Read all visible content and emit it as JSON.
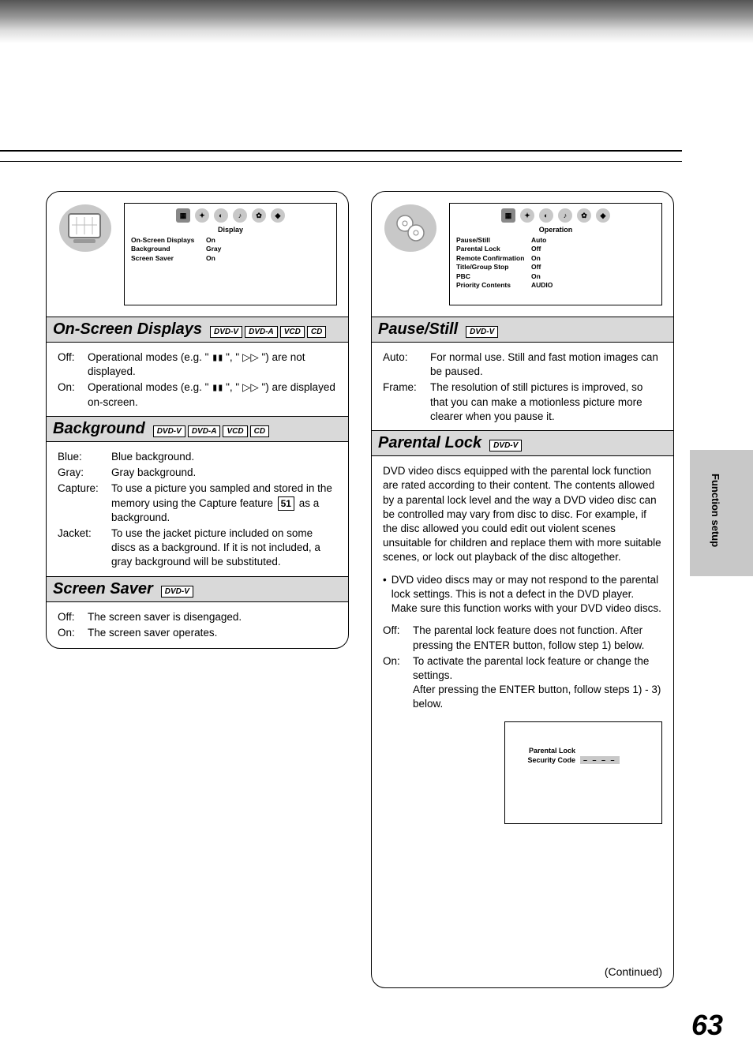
{
  "page_number": "63",
  "side_tab_label": "Function setup",
  "continued_label": "(Continued)",
  "colors": {
    "section_bg": "#d9d9d9",
    "tab_icon_bg": "#c8c8c8",
    "side_tab_bg": "#c8c8c8",
    "text": "#000000",
    "page_bg": "#ffffff"
  },
  "left": {
    "menu": {
      "title": "Display",
      "rows": [
        {
          "k": "On-Screen Displays",
          "v": "On"
        },
        {
          "k": "Background",
          "v": "Gray"
        },
        {
          "k": "Screen Saver",
          "v": "On"
        }
      ]
    },
    "sections": [
      {
        "title": "On-Screen Displays",
        "badges": [
          "DVD-V",
          "DVD-A",
          "VCD",
          "CD"
        ],
        "defs_class": "t-w1",
        "defs": [
          {
            "term": "Off:",
            "desc": "Operational modes (e.g. \" ▮▮ \", \" ▷▷ \") are not displayed."
          },
          {
            "term": "On:",
            "desc": "Operational modes (e.g. \" ▮▮ \", \" ▷▷ \") are displayed on-screen."
          }
        ]
      },
      {
        "title": "Background",
        "badges": [
          "DVD-V",
          "DVD-A",
          "VCD",
          "CD"
        ],
        "defs_class": "t-w2",
        "defs": [
          {
            "term": "Blue:",
            "desc": "Blue background."
          },
          {
            "term": "Gray:",
            "desc": "Gray background."
          },
          {
            "term": "Capture:",
            "desc": "To use a picture you sampled and stored in the memory using the Capture feature  51  as a background.",
            "has_ref": true,
            "ref": "51"
          },
          {
            "term": "Jacket:",
            "desc": "To use the jacket picture included on some discs as a background. If it is not included, a gray background will be substituted."
          }
        ]
      },
      {
        "title": "Screen Saver",
        "badges": [
          "DVD-V"
        ],
        "defs_class": "t-w1",
        "defs": [
          {
            "term": "Off:",
            "desc": "The screen saver is disengaged."
          },
          {
            "term": "On:",
            "desc": "The screen saver operates."
          }
        ]
      }
    ]
  },
  "right": {
    "menu": {
      "title": "Operation",
      "rows": [
        {
          "k": "Pause/Still",
          "v": "Auto"
        },
        {
          "k": "Parental Lock",
          "v": "Off"
        },
        {
          "k": "Remote Confirmation",
          "v": "On"
        },
        {
          "k": "Title/Group Stop",
          "v": "Off"
        },
        {
          "k": "PBC",
          "v": "On"
        },
        {
          "k": "Priority Contents",
          "v": "AUDIO"
        }
      ]
    },
    "sections": [
      {
        "title": "Pause/Still",
        "badges": [
          "DVD-V"
        ],
        "defs_class": "t-w3",
        "defs": [
          {
            "term": "Auto:",
            "desc": "For normal use. Still and fast motion images can be paused."
          },
          {
            "term": "Frame:",
            "desc": "The resolution of still pictures is improved, so that you can make a motionless picture more clearer when you pause it."
          }
        ]
      },
      {
        "title": "Parental Lock",
        "badges": [
          "DVD-V"
        ],
        "paragraph": "DVD video discs equipped with the parental lock function are rated according to their content. The contents allowed by a parental lock level and the way a DVD video disc can be controlled may vary from disc to disc. For example, if the disc allowed you could edit out violent scenes unsuitable for children and replace them with more suitable scenes, or lock out playback of the disc altogether.",
        "bullet": "DVD video discs may or may not respond to the parental lock settings. This is not a defect in the DVD player. Make sure this function works with your DVD video discs.",
        "defs_class": "t-w1",
        "defs": [
          {
            "term": "Off:",
            "desc": "The parental lock feature does not function. After pressing the ENTER button, follow step 1) below."
          },
          {
            "term": "On:",
            "desc": "To activate the parental lock feature or change the settings.\nAfter pressing the ENTER button, follow steps 1) - 3) below."
          }
        ],
        "panel": {
          "rows": [
            {
              "k": "Parental Lock",
              "v": ""
            },
            {
              "k": "Security Code",
              "v": "– – – –"
            }
          ]
        }
      }
    ]
  }
}
